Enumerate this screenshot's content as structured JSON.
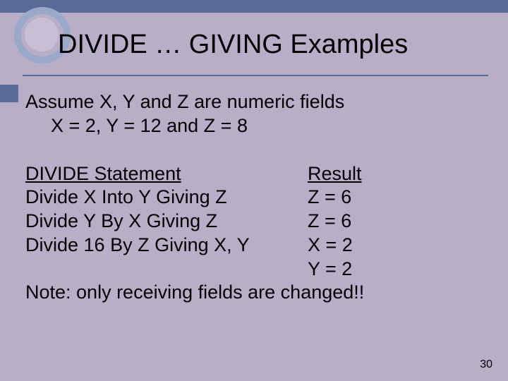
{
  "title": "DIVIDE … GIVING Examples",
  "assume": {
    "line1": "Assume X, Y and Z are numeric fields",
    "line2": "X = 2, Y = 12 and Z = 8"
  },
  "headers": {
    "statement": "DIVIDE Statement",
    "result": "Result"
  },
  "rows": [
    {
      "stmt": "Divide X Into Y Giving Z",
      "res": "Z = 6"
    },
    {
      "stmt": "Divide Y By X Giving Z",
      "res": "Z = 6"
    },
    {
      "stmt": "Divide 16 By Z Giving X, Y",
      "res": "X = 2"
    },
    {
      "stmt": "",
      "res": "Y = 2"
    }
  ],
  "note": "Note:  only receiving fields are changed!!",
  "page_number": "30",
  "colors": {
    "background": "#b8aec8",
    "accent": "#5a6b9a",
    "circle_ring": "#9aa8c9",
    "circle_fill": "#c7bfd6"
  }
}
